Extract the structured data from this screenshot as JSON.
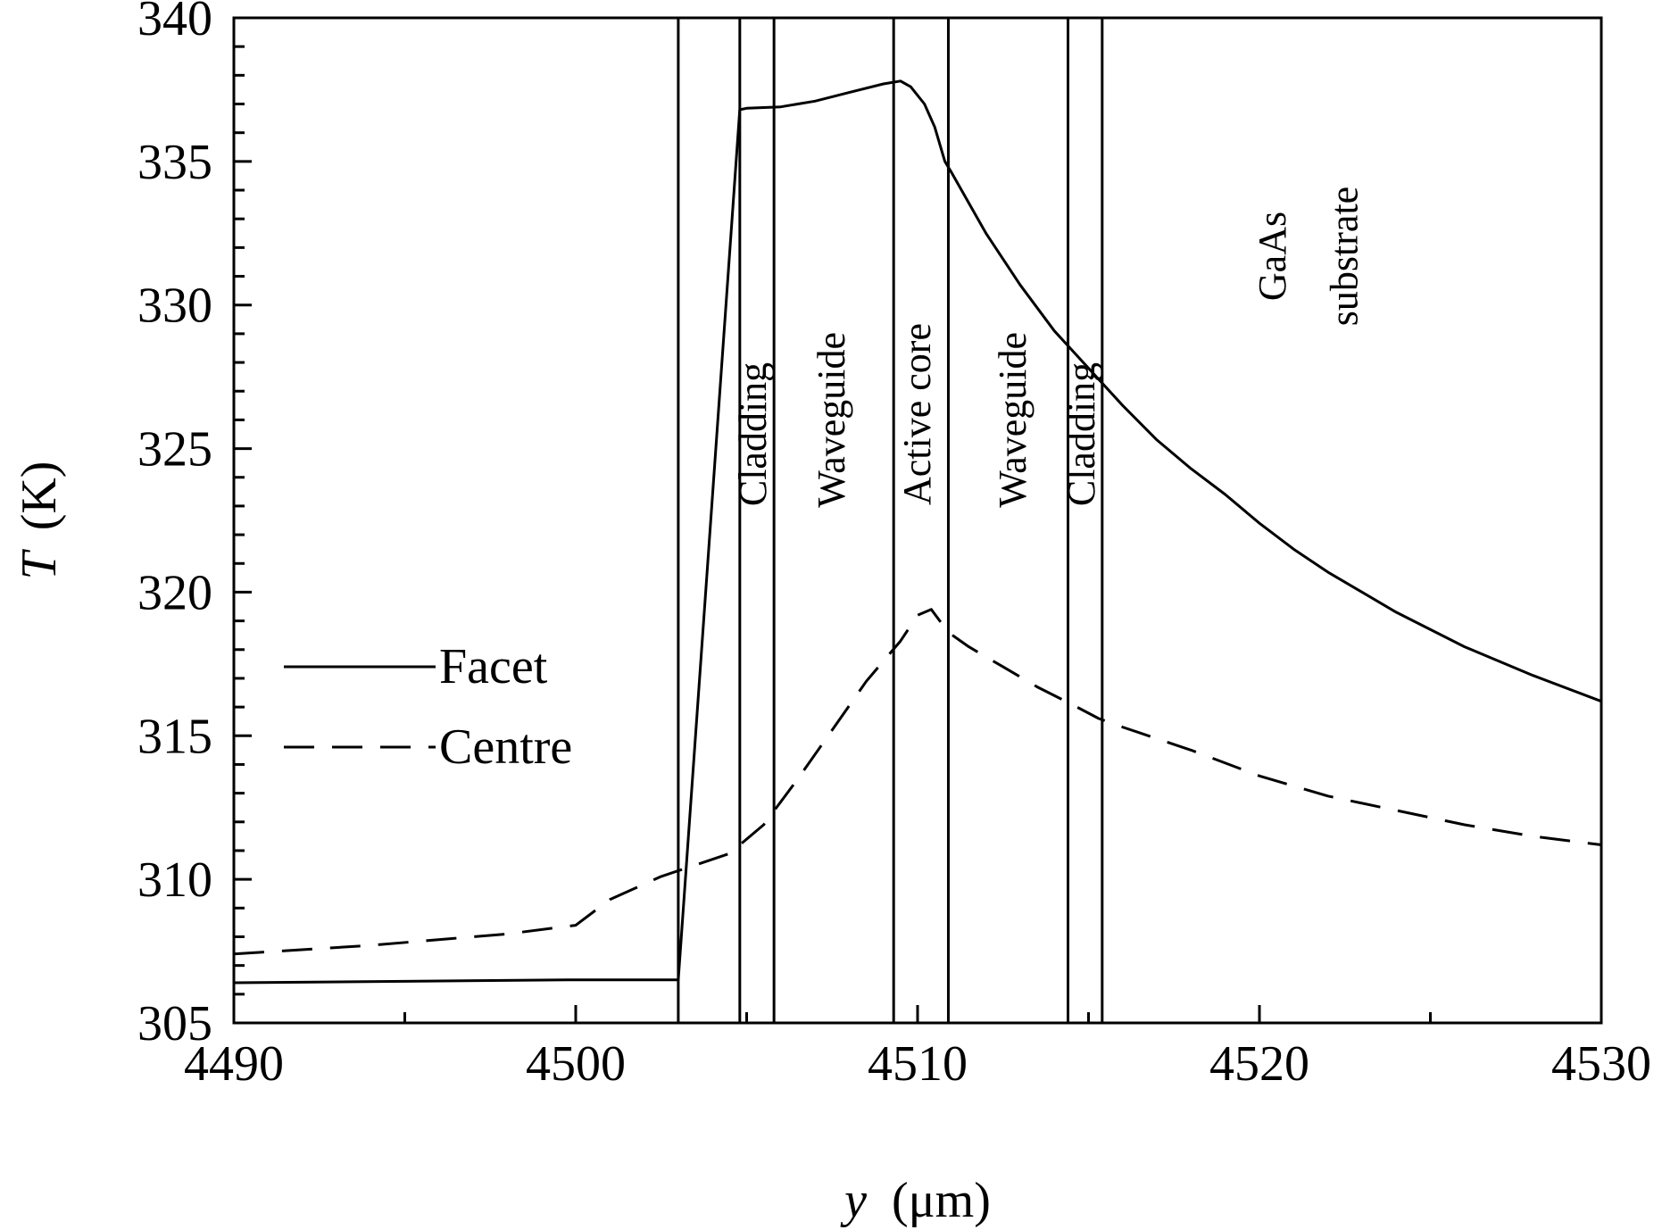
{
  "chart_data": {
    "type": "line",
    "xlabel": {
      "var": "y",
      "unit": "(μm)"
    },
    "ylabel": {
      "var": "T",
      "unit": "(K)"
    },
    "xlim": [
      4490,
      4530
    ],
    "ylim": [
      305,
      340
    ],
    "xticks": [
      "4490",
      "4500",
      "4510",
      "4520",
      "4530"
    ],
    "yticks": [
      "305",
      "310",
      "315",
      "320",
      "325",
      "330",
      "335",
      "340"
    ],
    "grid": false,
    "legend_position": "center-left",
    "region_boundaries": [
      4503.0,
      4504.8,
      4505.8,
      4509.3,
      4510.9,
      4514.4,
      4515.4
    ],
    "regions": [
      {
        "label": "Cladding",
        "x": 4505.3,
        "y": 325.5
      },
      {
        "label": "Waveguide",
        "x": 4507.6,
        "y": 326.0
      },
      {
        "label": "Active core",
        "x": 4510.1,
        "y": 326.2
      },
      {
        "label": "Waveguide",
        "x": 4512.9,
        "y": 326.0
      },
      {
        "label": "Cladding",
        "x": 4514.9,
        "y": 325.5
      },
      {
        "label": "GaAs",
        "x": 4520.5,
        "y": 331.7
      },
      {
        "label": "substrate",
        "x": 4522.6,
        "y": 331.7
      }
    ],
    "series": [
      {
        "name": "Facet",
        "style": "solid",
        "x": [
          4490,
          4495,
          4500,
          4502.9,
          4503.0,
          4504.8,
          4505,
          4506,
          4507,
          4508,
          4509,
          4509.5,
          4509.8,
          4510.2,
          4510.5,
          4510.8,
          4511,
          4512,
          4513,
          4514,
          4515,
          4516,
          4517,
          4518,
          4519,
          4520,
          4521,
          4522,
          4524,
          4526,
          4528,
          4530
        ],
        "y": [
          306.4,
          306.45,
          306.5,
          306.5,
          306.5,
          336.8,
          336.85,
          336.9,
          337.1,
          337.4,
          337.7,
          337.8,
          337.6,
          337.0,
          336.2,
          335.0,
          334.6,
          332.5,
          330.7,
          329.1,
          327.8,
          326.5,
          325.3,
          324.3,
          323.4,
          322.4,
          321.5,
          320.7,
          319.3,
          318.1,
          317.1,
          316.2
        ]
      },
      {
        "name": "Centre",
        "style": "dashed",
        "x": [
          4490,
          4494,
          4498,
          4500,
          4501,
          4502.5,
          4503.5,
          4504.5,
          4505.5,
          4506.5,
          4507.5,
          4508.5,
          4509.5,
          4510.0,
          4510.4,
          4510.9,
          4511.5,
          4512.5,
          4513.5,
          4514.5,
          4515.3,
          4516,
          4518,
          4520,
          4522,
          4524,
          4526,
          4528,
          4530
        ],
        "y": [
          307.4,
          307.7,
          308.1,
          308.4,
          309.3,
          310.1,
          310.5,
          310.9,
          311.9,
          313.5,
          315.2,
          316.9,
          318.3,
          319.2,
          319.4,
          318.6,
          318.1,
          317.4,
          316.7,
          316.1,
          315.6,
          315.3,
          314.5,
          313.6,
          312.9,
          312.4,
          311.9,
          311.5,
          311.2
        ]
      }
    ]
  }
}
